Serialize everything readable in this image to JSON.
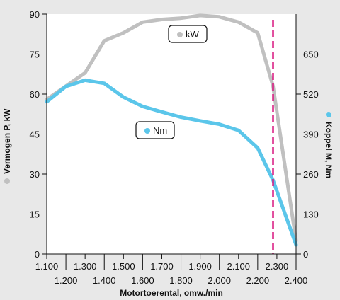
{
  "chart_data": {
    "type": "line",
    "title": "",
    "xlabel": "Motortoerental, omw./min",
    "ylabel_left": "Vermogen P, kW",
    "ylabel_right": "Koppel M, Nm",
    "x": [
      1100,
      1200,
      1300,
      1400,
      1500,
      1600,
      1700,
      1800,
      1900,
      2000,
      2100,
      2200,
      2300,
      2400
    ],
    "x_tick_labels": [
      "1.100",
      "1.200",
      "1.300",
      "1.400",
      "1.500",
      "1.600",
      "1.700",
      "1.800",
      "1.900",
      "2.000",
      "2.100",
      "2.200",
      "2.300",
      "2.400"
    ],
    "xlim": [
      1100,
      2400
    ],
    "ylim_left": [
      0,
      90
    ],
    "yticks_left": [
      0,
      15,
      30,
      45,
      60,
      75,
      90
    ],
    "ylim_right": [
      0,
      780
    ],
    "yticks_right": [
      0,
      130,
      260,
      390,
      520,
      650
    ],
    "series": [
      {
        "name": "kW",
        "axis": "left",
        "color": "#c0c0c0",
        "points": [
          [
            1100,
            58
          ],
          [
            1200,
            63
          ],
          [
            1300,
            68
          ],
          [
            1400,
            80
          ],
          [
            1500,
            83
          ],
          [
            1600,
            87
          ],
          [
            1700,
            88
          ],
          [
            1800,
            88.5
          ],
          [
            1900,
            89.5
          ],
          [
            2000,
            89
          ],
          [
            2100,
            87
          ],
          [
            2200,
            83
          ],
          [
            2280,
            63
          ],
          [
            2400,
            5
          ]
        ]
      },
      {
        "name": "Nm",
        "axis": "right",
        "color": "#5bc6ea",
        "points": [
          [
            1100,
            495
          ],
          [
            1200,
            545
          ],
          [
            1300,
            565
          ],
          [
            1400,
            555
          ],
          [
            1500,
            510
          ],
          [
            1600,
            480
          ],
          [
            1700,
            462
          ],
          [
            1800,
            445
          ],
          [
            1900,
            433
          ],
          [
            2000,
            422
          ],
          [
            2100,
            402
          ],
          [
            2200,
            345
          ],
          [
            2280,
            240
          ],
          [
            2400,
            30
          ]
        ]
      }
    ],
    "marker_line": {
      "x": 2280,
      "color": "#d8177f",
      "style": "dashed"
    },
    "legend": [
      {
        "label": "kW",
        "color": "#c0c0c0"
      },
      {
        "label": "Nm",
        "color": "#5bc6ea"
      }
    ]
  }
}
